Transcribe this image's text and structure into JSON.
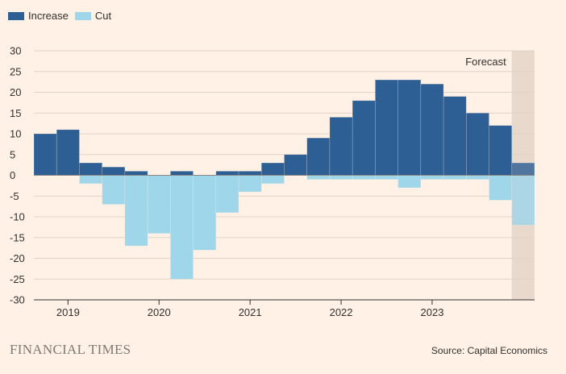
{
  "brand": "FINANCIAL TIMES",
  "source": "Source: Capital Economics",
  "colors": {
    "background": "#fff1e5",
    "increase": "#2e5f94",
    "cut": "#9fd6ea",
    "forecast_band": "#e9d8cc",
    "grid": "#e1d3c8",
    "axis": "#33302e"
  },
  "chart_data": {
    "type": "bar",
    "stacked": "diverging",
    "legend": [
      {
        "key": "increase",
        "label": "Increase"
      },
      {
        "key": "cut",
        "label": "Cut"
      }
    ],
    "legend_position": "top-left",
    "grid": true,
    "ylim": [
      -30,
      30
    ],
    "yticks": [
      30,
      25,
      20,
      15,
      10,
      5,
      0,
      -5,
      -10,
      -15,
      -20,
      -25,
      -30
    ],
    "x_start": 2018.625,
    "x_step": 0.25,
    "xlim": [
      2018.625,
      2024.125
    ],
    "xticks": [
      {
        "value": 2019,
        "label": "2019"
      },
      {
        "value": 2020,
        "label": "2020"
      },
      {
        "value": 2021,
        "label": "2021"
      },
      {
        "value": 2022,
        "label": "2022"
      },
      {
        "value": 2023,
        "label": "2023"
      }
    ],
    "forecast": {
      "label": "Forecast",
      "from": 2023.875,
      "to": 2024.125
    },
    "series": [
      {
        "key": "increase",
        "name": "Increase",
        "values": [
          10,
          11,
          3,
          2,
          1,
          0,
          1,
          0,
          1,
          1,
          3,
          5,
          9,
          14,
          18,
          23,
          23,
          22,
          19,
          15,
          12,
          3
        ]
      },
      {
        "key": "cut",
        "name": "Cut",
        "values": [
          0,
          0,
          -2,
          -7,
          -17,
          -14,
          -25,
          -18,
          -9,
          -4,
          -2,
          0,
          -1,
          -1,
          -1,
          -1,
          -3,
          -1,
          -1,
          -1,
          -6,
          -12
        ]
      }
    ]
  }
}
